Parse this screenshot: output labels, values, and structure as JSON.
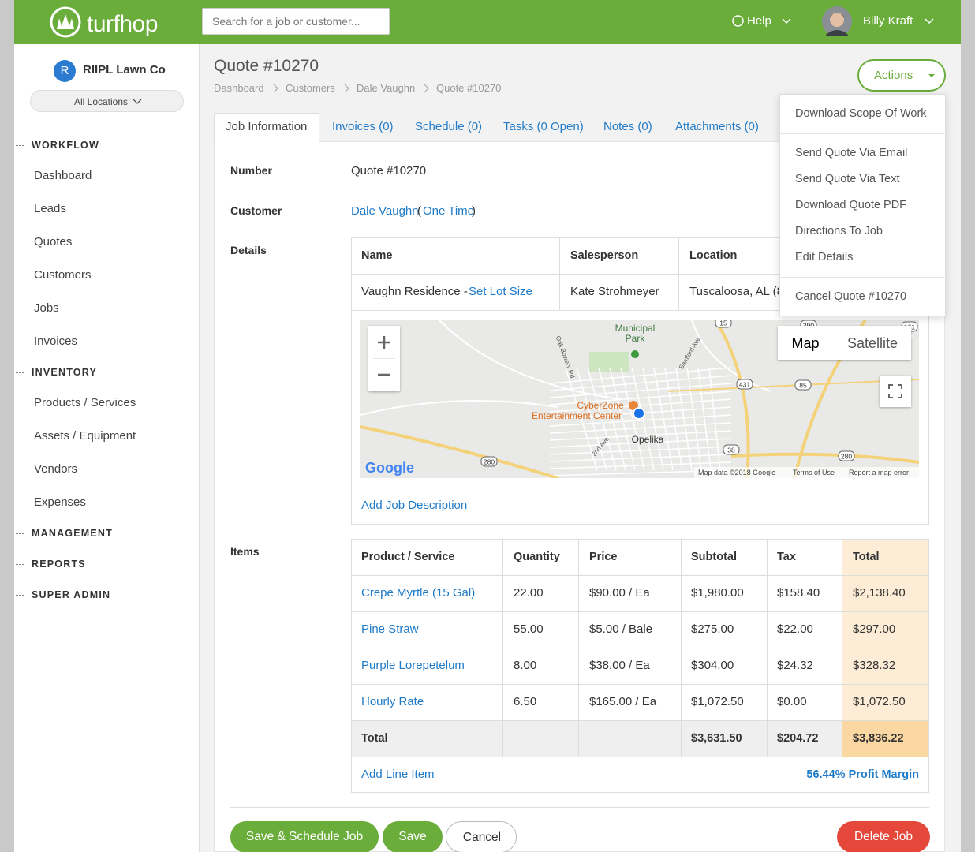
{
  "header": {
    "logo": "turfhop",
    "search_placeholder": "Search for a job or customer...",
    "help": "Help",
    "user": "Billy Kraft"
  },
  "sidebar": {
    "company_initial": "R",
    "company": "RIIPL Lawn Co",
    "location_filter": "All Locations",
    "sections": [
      {
        "title": "WORKFLOW",
        "items": [
          "Dashboard",
          "Leads",
          "Quotes",
          "Customers",
          "Jobs",
          "Invoices"
        ]
      },
      {
        "title": "INVENTORY",
        "items": [
          "Products / Services",
          "Assets / Equipment",
          "Vendors",
          "Expenses"
        ]
      },
      {
        "title": "MANAGEMENT",
        "items": []
      },
      {
        "title": "REPORTS",
        "items": []
      },
      {
        "title": "SUPER ADMIN",
        "items": []
      }
    ]
  },
  "page": {
    "title": "Quote #10270",
    "breadcrumb": [
      "Dashboard",
      "Customers",
      "Dale Vaughn",
      "Quote #10270"
    ],
    "actions": "Actions"
  },
  "tabs": [
    "Job Information",
    "Invoices (0)",
    "Schedule (0)",
    "Tasks (0 Open)",
    "Notes (0)",
    "Attachments (0)"
  ],
  "actions_menu": [
    [
      "Download Scope Of Work"
    ],
    [
      "Send Quote Via Email",
      "Send Quote Via Text",
      "Download Quote PDF",
      "Directions To Job",
      "Edit Details"
    ],
    [
      "Cancel Quote #10270"
    ]
  ],
  "fields": {
    "number_label": "Number",
    "number": "Quote #10270",
    "customer_label": "Customer",
    "customer": "Dale Vaughn",
    "paren_open": "(",
    "customer_type": "One Time",
    "paren_close": ")",
    "details_label": "Details",
    "items_label": "Items"
  },
  "details_table": {
    "headers": [
      "Name",
      "Salesperson",
      "Location"
    ],
    "name": "Vaughn Residence -",
    "lot_size": "Set Lot Size",
    "salesperson": "Kate Strohmeyer",
    "location": "Tuscaloosa, AL (8",
    "add_description": "Add Job Description"
  },
  "map": {
    "labels": [
      "Municipal",
      "Park",
      "Oak Bowery Rd",
      "Samford Ave",
      "CyberZone",
      "Entertainment Center",
      "Opelika",
      "2nd Ave"
    ],
    "route_shields": [
      "15",
      "390",
      "161",
      "431",
      "85",
      "38",
      "280",
      "280"
    ],
    "type_map": "Map",
    "type_satellite": "Satellite",
    "brand": "Google",
    "attribution": "Map data ©2018 Google",
    "terms": "Terms of Use",
    "report": "Report a map error"
  },
  "items_table": {
    "headers": [
      "Product / Service",
      "Quantity",
      "Price",
      "Subtotal",
      "Tax",
      "Total"
    ],
    "rows": [
      [
        "Crepe Myrtle (15 Gal)",
        "22.00",
        "$90.00 / Ea",
        "$1,980.00",
        "$158.40",
        "$2,138.40"
      ],
      [
        "Pine Straw",
        "55.00",
        "$5.00 / Bale",
        "$275.00",
        "$22.00",
        "$297.00"
      ],
      [
        "Purple Lorepetelum",
        "8.00",
        "$38.00 / Ea",
        "$304.00",
        "$24.32",
        "$328.32"
      ],
      [
        "Hourly Rate",
        "6.50",
        "$165.00 / Ea",
        "$1,072.50",
        "$0.00",
        "$1,072.50"
      ]
    ],
    "total_label": "Total",
    "total_subtotal": "$3,631.50",
    "total_tax": "$204.72",
    "total": "$3,836.22",
    "add_line": "Add Line Item",
    "profit_margin": "56.44% Profit Margin"
  },
  "buttons": {
    "save_schedule": "Save & Schedule Job",
    "save": "Save",
    "cancel": "Cancel",
    "delete": "Delete Job"
  }
}
